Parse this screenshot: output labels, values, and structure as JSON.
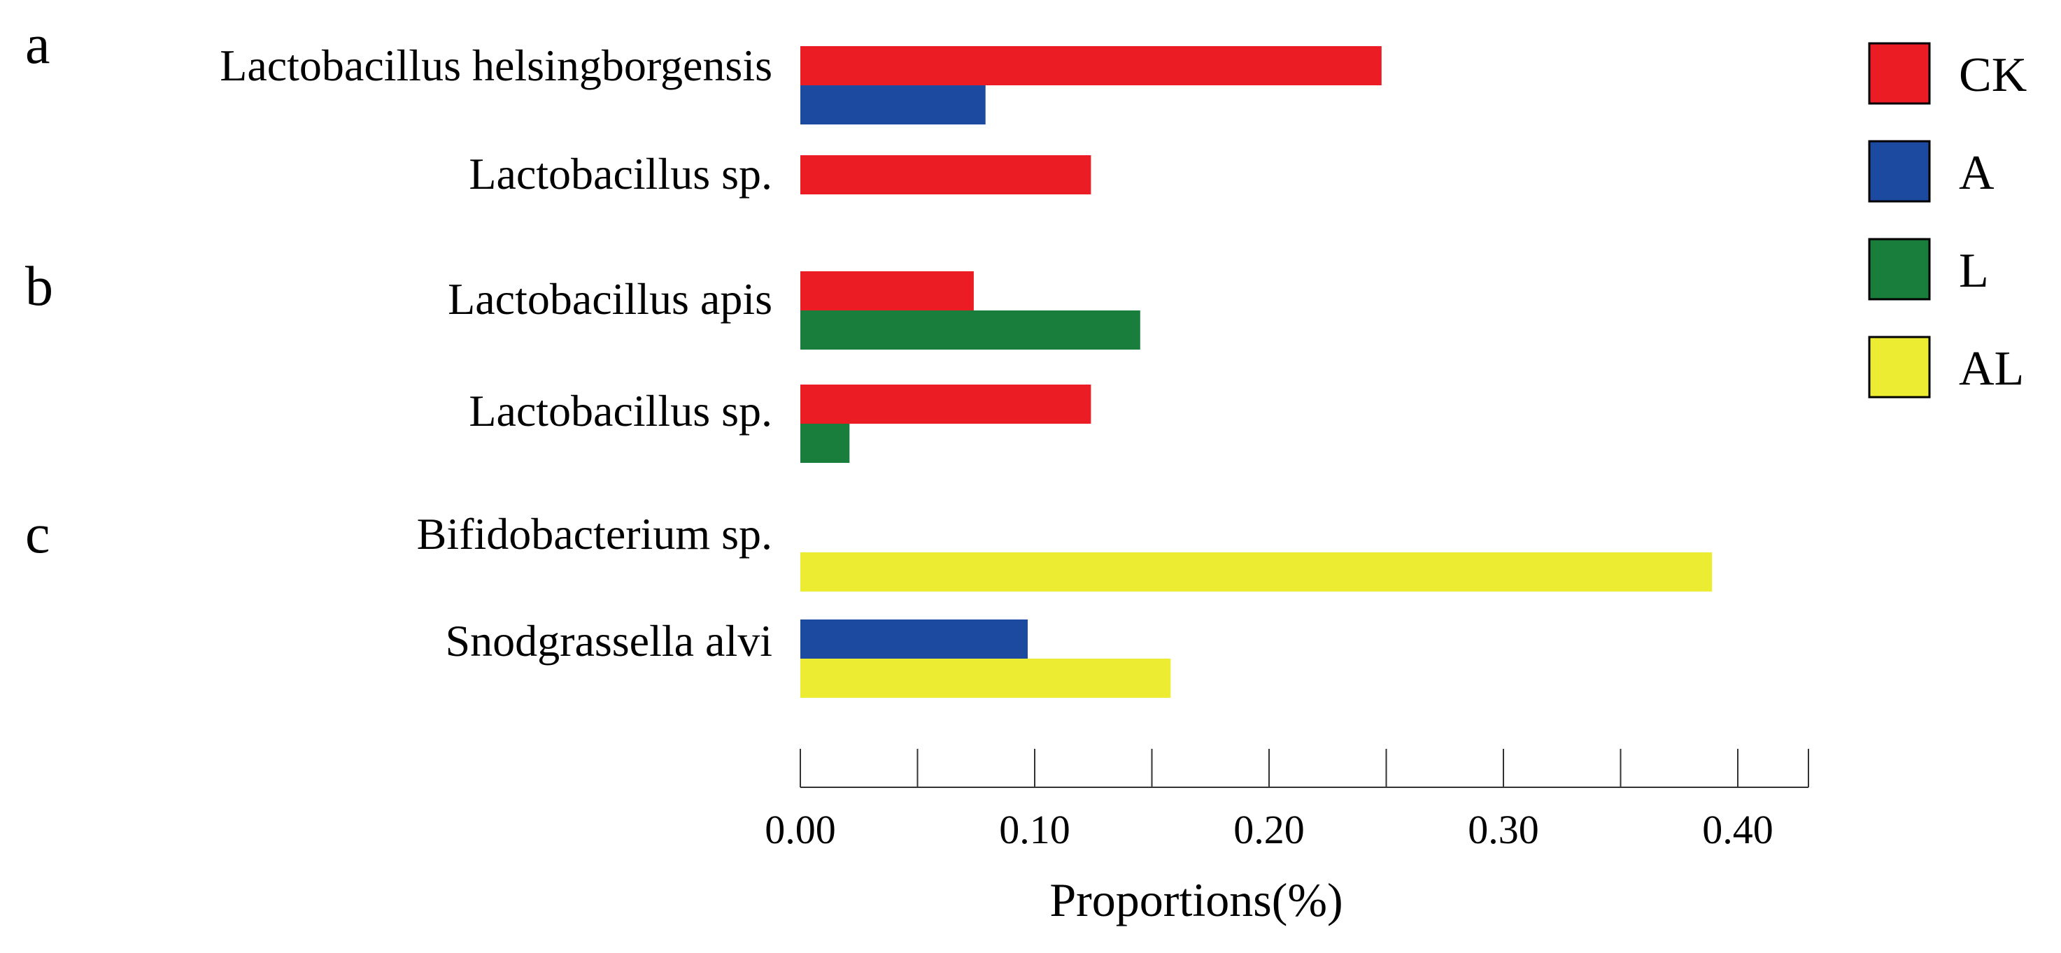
{
  "chart_data": {
    "type": "bar",
    "orientation": "horizontal",
    "title": "",
    "xlabel": "Proportions(%)",
    "ylabel": "",
    "xlim": [
      0,
      0.43
    ],
    "x_ticks": [
      0,
      0.05,
      0.1,
      0.15,
      0.2,
      0.25,
      0.3,
      0.35,
      0.4
    ],
    "x_tick_labels": [
      "0.00",
      "0.10",
      "0.20",
      "0.30",
      "0.40"
    ],
    "x_tick_label_values": [
      0,
      0.1,
      0.2,
      0.3,
      0.4
    ],
    "grid": false,
    "legend_position": "top-right",
    "series": [
      {
        "key": "CK",
        "name": "CK",
        "color": "#ec1c24"
      },
      {
        "key": "A",
        "name": "A",
        "color": "#1b4aa0"
      },
      {
        "key": "L",
        "name": "L",
        "color": "#197d3c"
      },
      {
        "key": "AL",
        "name": "AL",
        "color": "#ecec32"
      }
    ],
    "panels": [
      {
        "label": "a",
        "categories": [
          {
            "name": "Lactobacillus helsingborgensis",
            "bars": [
              {
                "series": "CK",
                "value": 0.248
              },
              {
                "series": "A",
                "value": 0.079
              }
            ]
          },
          {
            "name": "Lactobacillus sp.",
            "bars": [
              {
                "series": "CK",
                "value": 0.124
              },
              {
                "series": "A",
                "value": 0
              }
            ]
          }
        ]
      },
      {
        "label": "b",
        "categories": [
          {
            "name": "Lactobacillus apis",
            "bars": [
              {
                "series": "CK",
                "value": 0.074
              },
              {
                "series": "L",
                "value": 0.145
              }
            ]
          },
          {
            "name": "Lactobacillus sp.",
            "bars": [
              {
                "series": "CK",
                "value": 0.124
              },
              {
                "series": "L",
                "value": 0.021
              }
            ]
          }
        ]
      },
      {
        "label": "c",
        "categories": [
          {
            "name": "Bifidobacterium sp.",
            "bars": [
              {
                "series": "A",
                "value": 0
              },
              {
                "series": "AL",
                "value": 0.389
              }
            ]
          },
          {
            "name": "Snodgrassella alvi",
            "bars": [
              {
                "series": "A",
                "value": 0.097
              },
              {
                "series": "AL",
                "value": 0.158
              }
            ]
          }
        ]
      }
    ]
  }
}
